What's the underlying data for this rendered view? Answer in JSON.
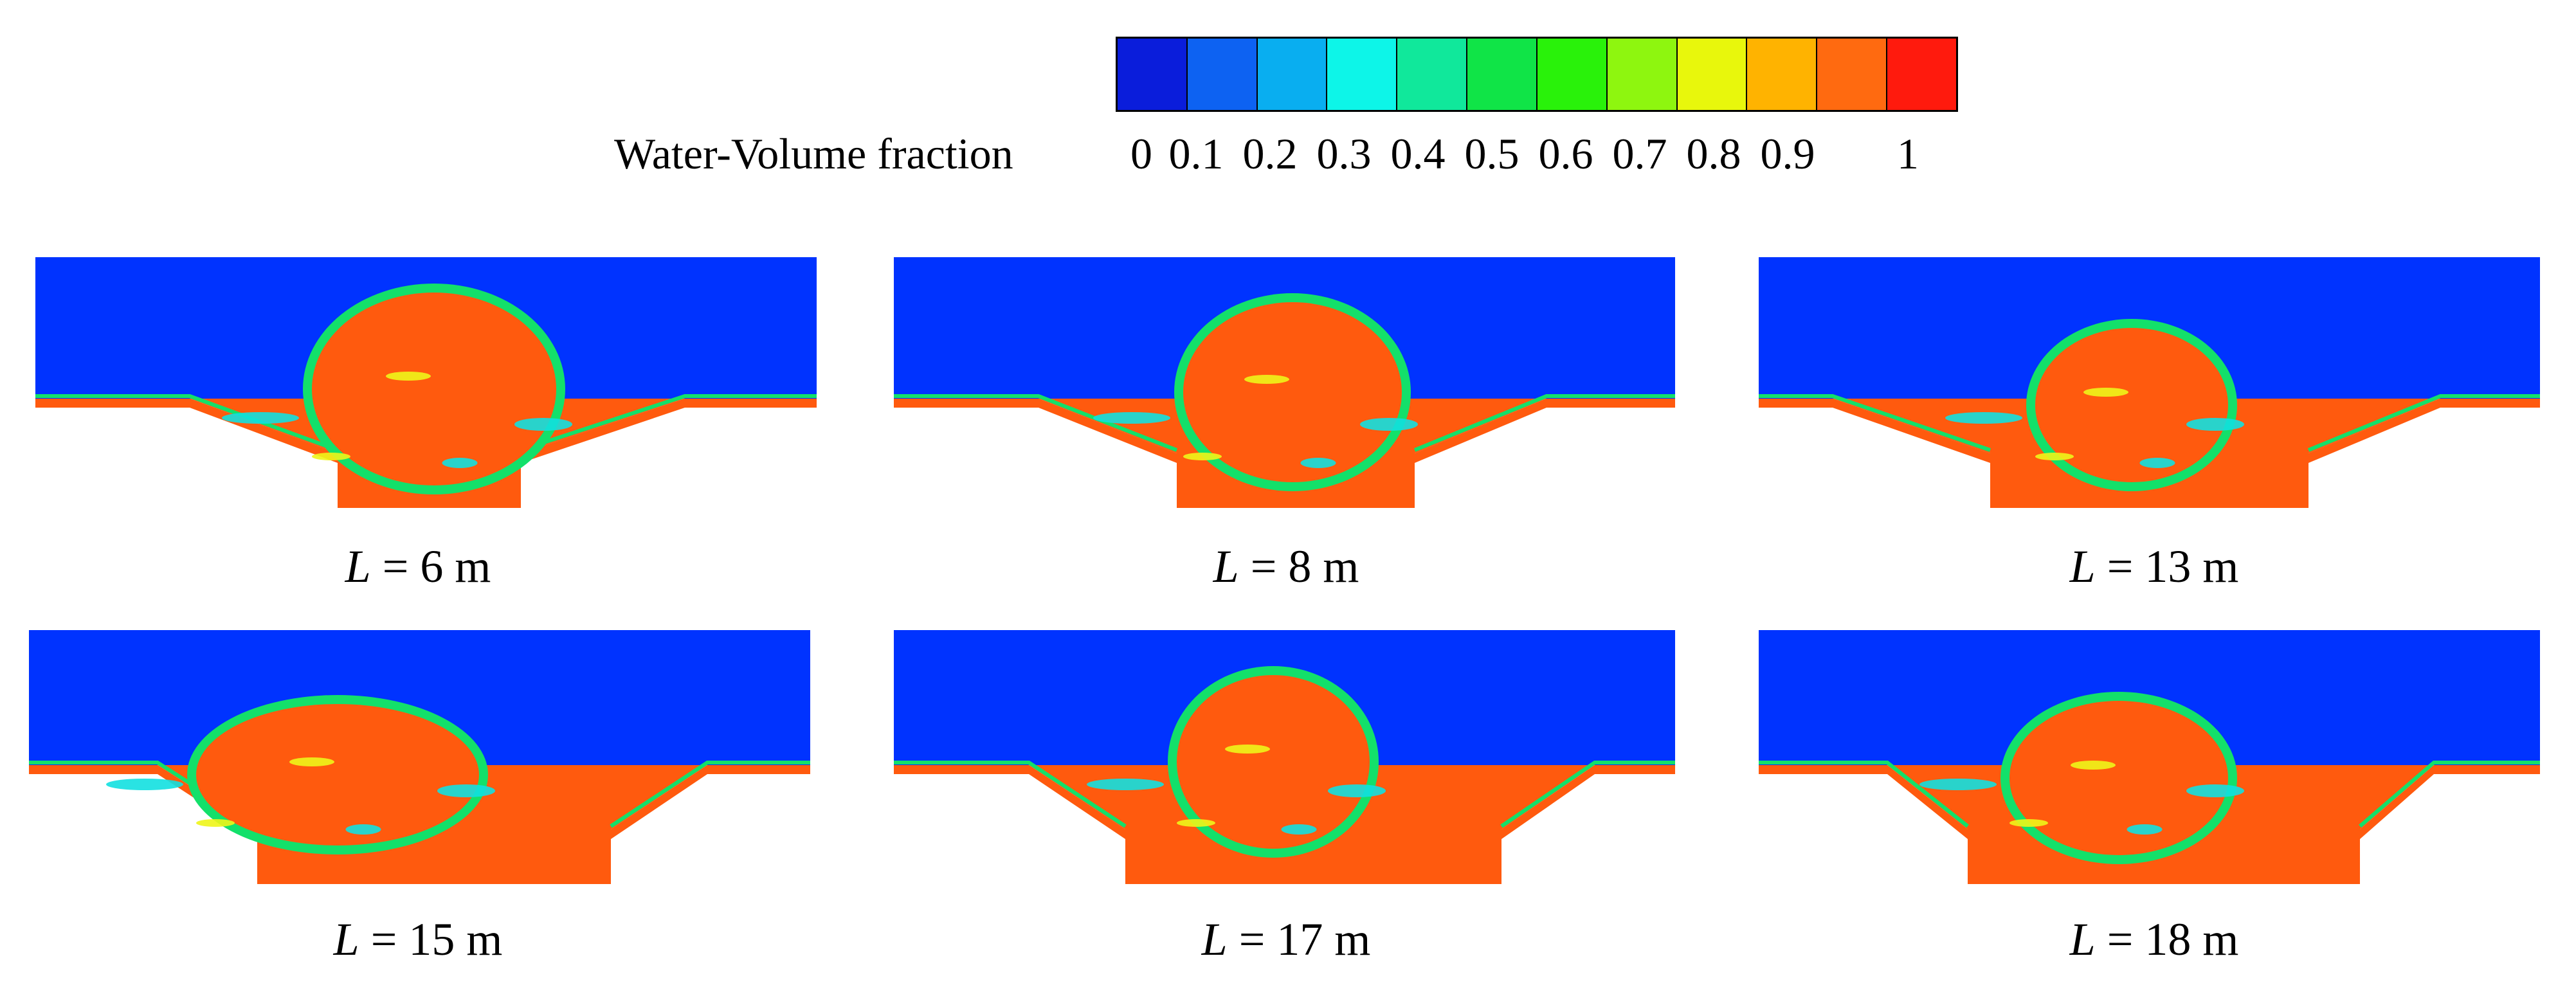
{
  "legend": {
    "title": "Water-Volume fraction",
    "ticks": [
      "0",
      "0.1",
      "0.2",
      "0.3",
      "0.4",
      "0.5",
      "0.6",
      "0.7",
      "0.8",
      "0.9",
      "1"
    ],
    "colors": [
      "#0a1ddb",
      "#0d62f2",
      "#09aef0",
      "#0df5e8",
      "#10e89b",
      "#10e447",
      "#29f20a",
      "#8ef60f",
      "#e8f70c",
      "#ffb300",
      "#ff6a10",
      "#ff1a0d"
    ]
  },
  "colors": {
    "water": "#ff5a0e",
    "air": "#0033ff",
    "mix_green": "#13e06a",
    "mix_yellow": "#eef51a",
    "mix_cyan": "#12e0e0"
  },
  "panels": [
    {
      "var": "L",
      "value": "= 6 m"
    },
    {
      "var": "L",
      "value": "= 8 m"
    },
    {
      "var": "L",
      "value": "= 13 m"
    },
    {
      "var": "L",
      "value": "= 15 m"
    },
    {
      "var": "L",
      "value": "= 17 m"
    },
    {
      "var": "L",
      "value": "= 18 m"
    }
  ]
}
